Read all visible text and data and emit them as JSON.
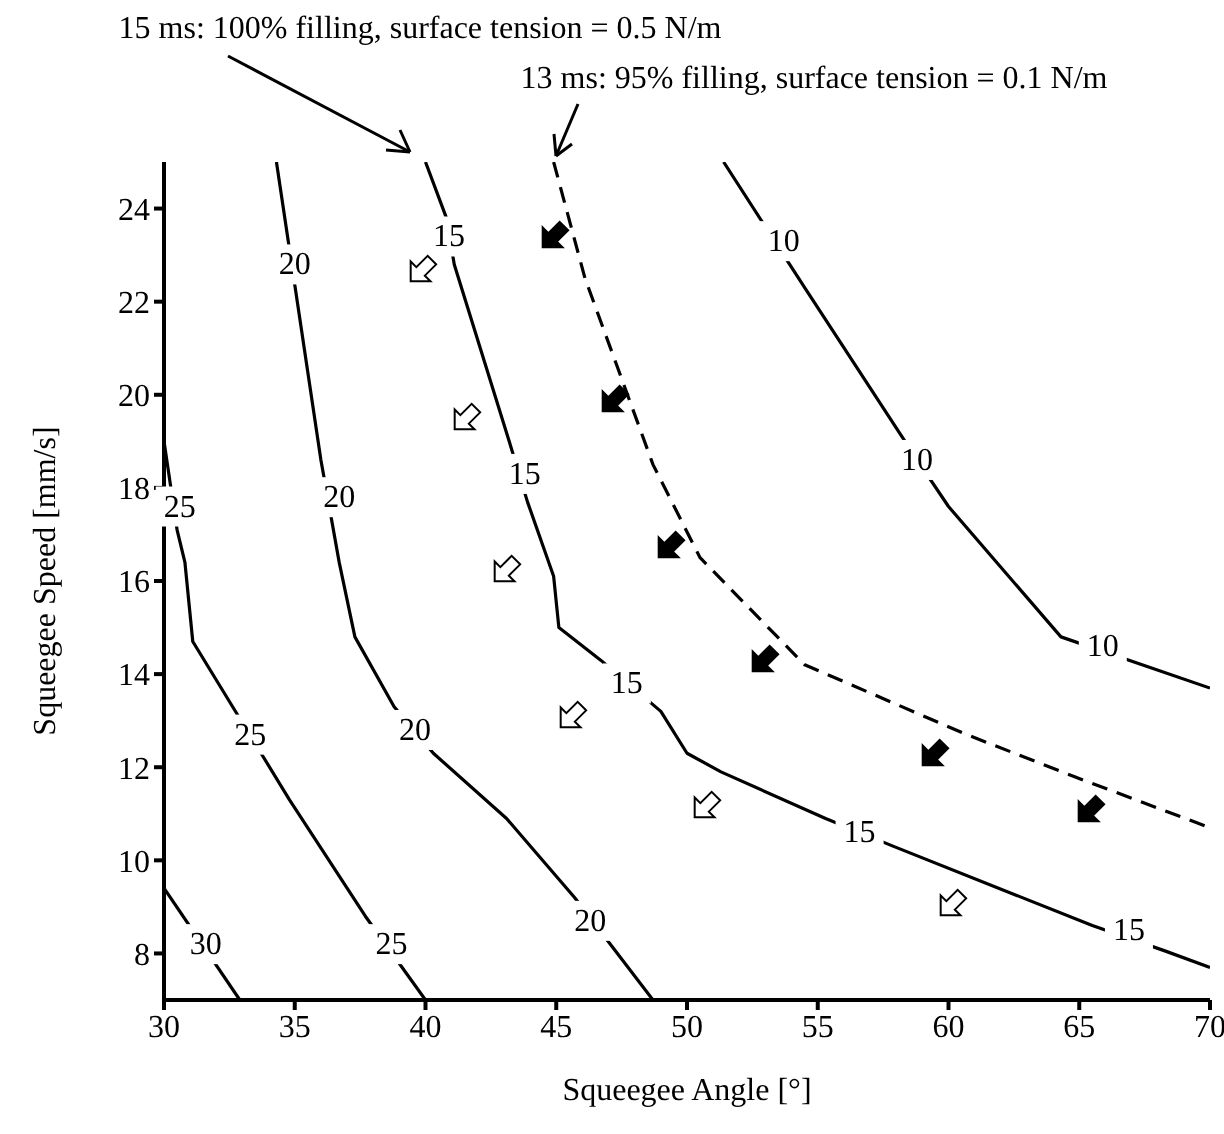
{
  "chart_data": {
    "type": "line",
    "xlabel": "Squeegee Angle [°]",
    "ylabel": "Squeegee Speed [mm/s]",
    "xlim": [
      30,
      70
    ],
    "ylim": [
      7,
      25
    ],
    "xticks": [
      30,
      35,
      40,
      45,
      50,
      55,
      60,
      65,
      70
    ],
    "yticks": [
      8,
      10,
      12,
      14,
      16,
      18,
      20,
      22,
      24
    ],
    "marker": "none",
    "series": [
      {
        "color": "#000000",
        "x": [
          51.4,
          54.5,
          58.8,
          60,
          64.3,
          70
        ],
        "values": [
          25,
          22.3,
          18.6,
          17.6,
          14.8,
          13.7
        ]
      },
      {
        "color": "#000000",
        "x": [
          40,
          40.8,
          41.1,
          43.2,
          43.9,
          44.9,
          45.1,
          46.7,
          49,
          50,
          51.3,
          55.3,
          57.9,
          65.5,
          68.3,
          70
        ],
        "values": [
          25,
          23.8,
          22.8,
          19,
          17.7,
          16.1,
          15,
          14.3,
          13.2,
          12.3,
          11.9,
          10.9,
          10.3,
          8.6,
          8.05,
          7.7
        ]
      },
      {
        "color": "#000000",
        "x": [
          34.3,
          36,
          36.7,
          37.3,
          38.8,
          40.3,
          43.1,
          45.7,
          48.7
        ],
        "values": [
          25,
          18.6,
          16.4,
          14.8,
          13.3,
          12.3,
          10.9,
          9.2,
          7
        ]
      },
      {
        "color": "#000000",
        "x": [
          30,
          30.5,
          30.8,
          31.1,
          34.8,
          37.7,
          40
        ],
        "values": [
          19,
          17.1,
          16.4,
          14.7,
          11.3,
          8.8,
          7
        ]
      },
      {
        "color": "#000000",
        "x": [
          30,
          32.9
        ],
        "values": [
          9.4,
          7
        ]
      },
      {
        "color": "#000000",
        "line_style": "dashed",
        "x": [
          44.9,
          46.1,
          48.7,
          50.5,
          54.5,
          60.7,
          64.8,
          70
        ],
        "values": [
          25,
          22.5,
          18.5,
          16.5,
          14.2,
          12.7,
          11.8,
          10.7
        ]
      }
    ],
    "annotations": [
      "15 ms: 100% filling, surface tension = 0.5 N/m",
      "13 ms: 95% filling, surface tension = 0.1 N/m",
      {
        "text": "10",
        "x": 53.7,
        "y": 23.3
      },
      {
        "text": "10",
        "x": 58.8,
        "y": 18.6
      },
      {
        "text": "10",
        "x": 65.9,
        "y": 14.6
      },
      {
        "text": "15",
        "x": 40.9,
        "y": 23.4
      },
      {
        "text": "15",
        "x": 43.8,
        "y": 18.3
      },
      {
        "text": "15",
        "x": 47.7,
        "y": 13.8
      },
      {
        "text": "15",
        "x": 56.6,
        "y": 10.6
      },
      {
        "text": "15",
        "x": 66.9,
        "y": 8.5
      },
      {
        "text": "20",
        "x": 35,
        "y": 22.8
      },
      {
        "text": "20",
        "x": 36.7,
        "y": 17.8
      },
      {
        "text": "20",
        "x": 39.6,
        "y": 12.8
      },
      {
        "text": "20",
        "x": 46.3,
        "y": 8.7
      },
      {
        "text": "25",
        "x": 30.6,
        "y": 17.6
      },
      {
        "text": "25",
        "x": 33.3,
        "y": 12.7
      },
      {
        "text": "25",
        "x": 38.7,
        "y": 8.2
      },
      {
        "text": "30",
        "x": 31.6,
        "y": 8.2
      }
    ]
  }
}
